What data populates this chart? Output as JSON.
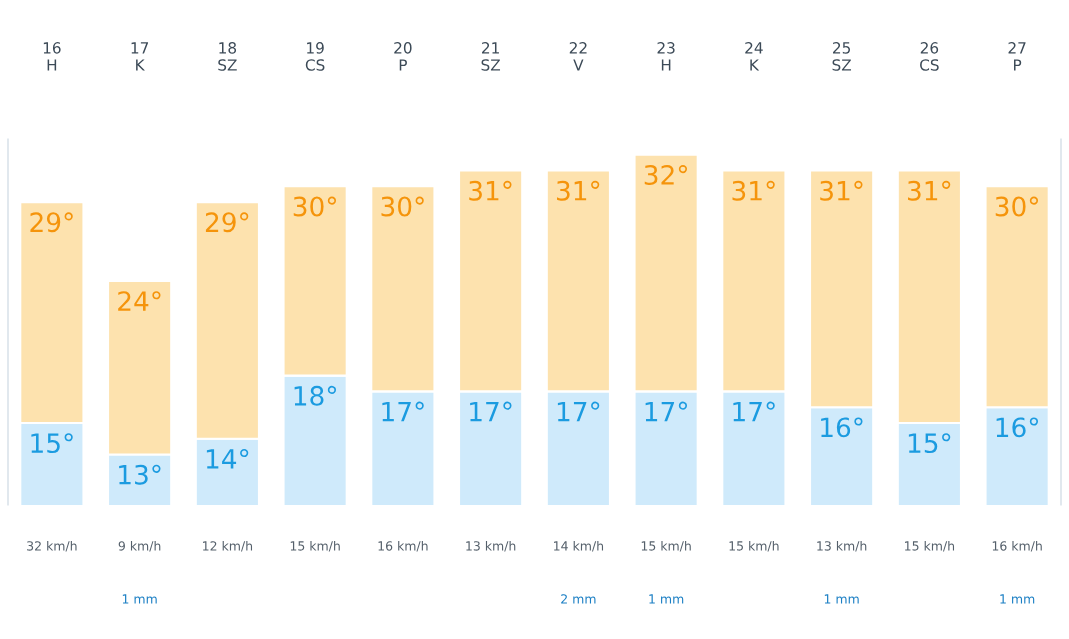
{
  "chart_data": {
    "type": "bar",
    "stacked": true,
    "categories": [
      "16\nH",
      "17\nK",
      "18\nSZ",
      "19\nCS",
      "20\nP",
      "21\nSZ",
      "22\nV",
      "23\nH",
      "24\nK",
      "25\nSZ",
      "26\nCS",
      "27\nP"
    ],
    "series": [
      {
        "color": "#cfeafb",
        "values": [
          15,
          13,
          14,
          18,
          17,
          17,
          17,
          17,
          17,
          16,
          15,
          16
        ],
        "value_labels": [
          "15°",
          "13°",
          "14°",
          "18°",
          "17°",
          "17°",
          "17°",
          "17°",
          "17°",
          "16°",
          "15°",
          "16°"
        ]
      },
      {
        "color": "#fde2ae",
        "values": [
          14,
          11,
          15,
          12,
          13,
          14,
          14,
          15,
          14,
          15,
          16,
          14
        ]
      }
    ],
    "totals": [
      "29°",
      "24°",
      "29°",
      "30°",
      "30°",
      "31°",
      "31°",
      "32°",
      "31°",
      "31°",
      "31°",
      "30°"
    ],
    "ylim": [
      9.8,
      33
    ],
    "tick_labels": "x",
    "legend": false,
    "grid": false,
    "annotations": [
      "32 km/h",
      "9 km/h",
      "12 km/h",
      "15 km/h",
      "16 km/h",
      "13 km/h",
      "14 km/h",
      "15 km/h",
      "15 km/h",
      "13 km/h",
      "15 km/h",
      "16 km/h",
      null,
      "1 mm",
      null,
      null,
      null,
      null,
      "2 mm",
      "1 mm",
      null,
      "1 mm",
      null,
      "1 mm"
    ]
  }
}
